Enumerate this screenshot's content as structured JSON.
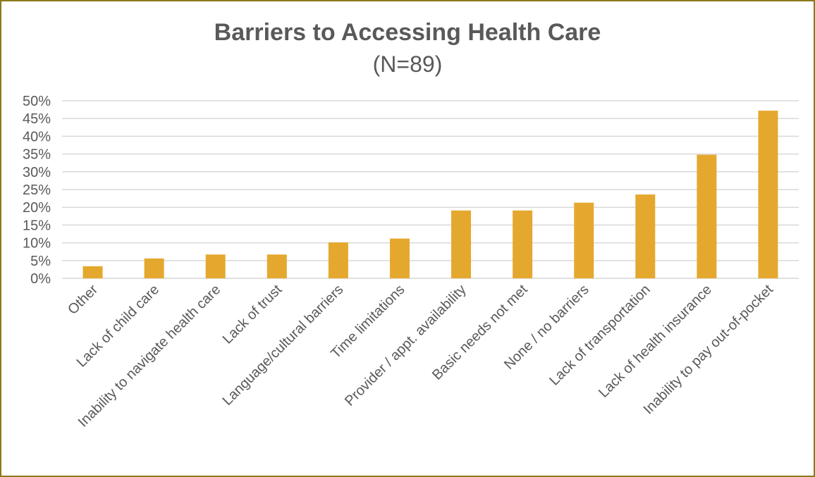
{
  "chart_data": {
    "type": "bar",
    "title": "Barriers to Accessing Health Care",
    "subtitle": "(N=89)",
    "xlabel": "",
    "ylabel": "",
    "categories": [
      "Other",
      "Lack of child care",
      "Inability to navigate health care",
      "Lack of trust",
      "Language/cultural barriers",
      "Time limitations",
      "Provider / appt. availability",
      "Basic needs not met",
      "None / no barriers",
      "Lack of transportation",
      "Lack of health insurance",
      "Inability to pay out-of-pocket"
    ],
    "values": [
      3.4,
      5.6,
      6.7,
      6.7,
      10.1,
      11.2,
      19.1,
      19.1,
      21.3,
      23.6,
      34.8,
      47.2
    ],
    "ylim": [
      0,
      50
    ],
    "yticks": [
      "0%",
      "5%",
      "10%",
      "15%",
      "20%",
      "25%",
      "30%",
      "35%",
      "40%",
      "45%",
      "50%"
    ],
    "ytick_values": [
      0,
      5,
      10,
      15,
      20,
      25,
      30,
      35,
      40,
      45,
      50
    ],
    "grid": true,
    "legend": "none",
    "colors": {
      "bar": "#E5A82E",
      "grid": "#D9D9D9",
      "text": "#595959",
      "border": "#8A7A1A"
    }
  }
}
